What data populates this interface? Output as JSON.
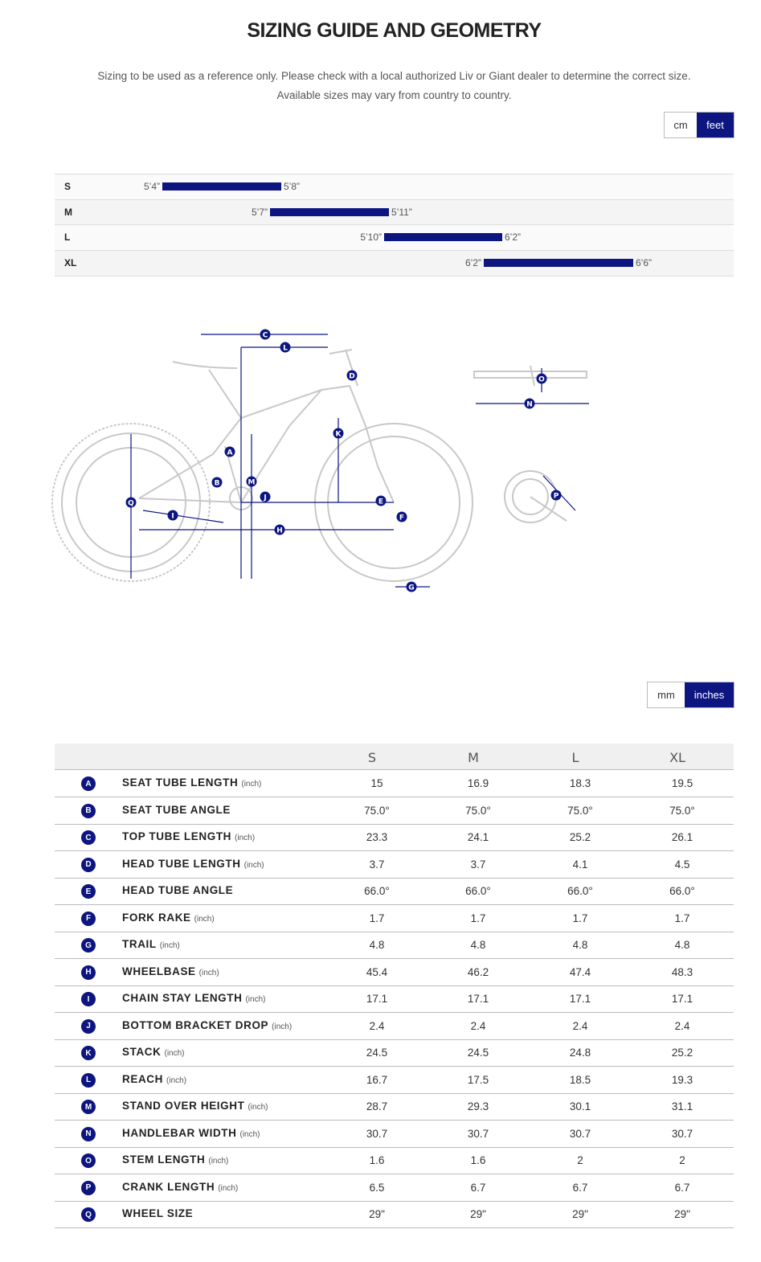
{
  "header": {
    "title": "SIZING GUIDE AND GEOMETRY",
    "subtitle_lines": [
      "Sizing to be used as a reference only. Please check with a local authorized Liv or Giant dealer to determine the correct size.",
      "Available sizes may vary from country to country."
    ]
  },
  "height_units": [
    "cm",
    "feet"
  ],
  "size_chart": {
    "rows": [
      {
        "size": "S",
        "from": "5’4”",
        "to": "5’8”"
      },
      {
        "size": "M",
        "from": "5’7”",
        "to": "5’11”"
      },
      {
        "size": "L",
        "from": "5’10”",
        "to": "6’2”"
      },
      {
        "size": "XL",
        "from": "6’2”",
        "to": "6’6”"
      }
    ]
  },
  "geometry_units": [
    "mm",
    "inches"
  ],
  "table": {
    "columns": [
      "S",
      "M",
      "L",
      "XL"
    ],
    "rows": [
      {
        "letter": "A",
        "name": "SEAT TUBE LENGTH",
        "unit": "(inch)",
        "values": [
          "15",
          "16.9",
          "18.3",
          "19.5"
        ]
      },
      {
        "letter": "B",
        "name": "SEAT TUBE ANGLE",
        "values": [
          "75.0°",
          "75.0°",
          "75.0°",
          "75.0°"
        ]
      },
      {
        "letter": "C",
        "name": "TOP TUBE LENGTH",
        "unit": "(inch)",
        "values": [
          "23.3",
          "24.1",
          "25.2",
          "26.1"
        ]
      },
      {
        "letter": "D",
        "name": "HEAD TUBE LENGTH",
        "unit": "(inch)",
        "values": [
          "3.7",
          "3.7",
          "4.1",
          "4.5"
        ]
      },
      {
        "letter": "E",
        "name": "HEAD TUBE ANGLE",
        "values": [
          "66.0°",
          "66.0°",
          "66.0°",
          "66.0°"
        ]
      },
      {
        "letter": "F",
        "name": "FORK RAKE",
        "unit": "(inch)",
        "values": [
          "1.7",
          "1.7",
          "1.7",
          "1.7"
        ]
      },
      {
        "letter": "G",
        "name": "TRAIL",
        "unit": "(inch)",
        "values": [
          "4.8",
          "4.8",
          "4.8",
          "4.8"
        ]
      },
      {
        "letter": "H",
        "name": "WHEELBASE",
        "unit": "(inch)",
        "values": [
          "45.4",
          "46.2",
          "47.4",
          "48.3"
        ]
      },
      {
        "letter": "I",
        "name": "CHAIN STAY LENGTH",
        "unit": "(inch)",
        "values": [
          "17.1",
          "17.1",
          "17.1",
          "17.1"
        ]
      },
      {
        "letter": "J",
        "name": "BOTTOM BRACKET DROP",
        "unit": "(inch)",
        "values": [
          "2.4",
          "2.4",
          "2.4",
          "2.4"
        ]
      },
      {
        "letter": "K",
        "name": "STACK",
        "unit": "(inch)",
        "values": [
          "24.5",
          "24.5",
          "24.8",
          "25.2"
        ]
      },
      {
        "letter": "L",
        "name": "REACH",
        "unit": "(inch)",
        "values": [
          "16.7",
          "17.5",
          "18.5",
          "19.3"
        ]
      },
      {
        "letter": "M",
        "name": "STAND OVER HEIGHT",
        "unit": "(inch)",
        "values": [
          "28.7",
          "29.3",
          "30.1",
          "31.1"
        ]
      },
      {
        "letter": "N",
        "name": "HANDLEBAR WIDTH",
        "unit": "(inch)",
        "values": [
          "30.7",
          "30.7",
          "30.7",
          "30.7"
        ]
      },
      {
        "letter": "O",
        "name": "STEM LENGTH",
        "unit": "(inch)",
        "values": [
          "1.6",
          "1.6",
          "2",
          "2"
        ]
      },
      {
        "letter": "P",
        "name": "CRANK LENGTH",
        "unit": "(inch)",
        "values": [
          "6.5",
          "6.7",
          "6.7",
          "6.7"
        ]
      },
      {
        "letter": "Q",
        "name": "WHEEL SIZE",
        "values": [
          "29\"",
          "29\"",
          "29\"",
          "29\""
        ]
      }
    ]
  }
}
